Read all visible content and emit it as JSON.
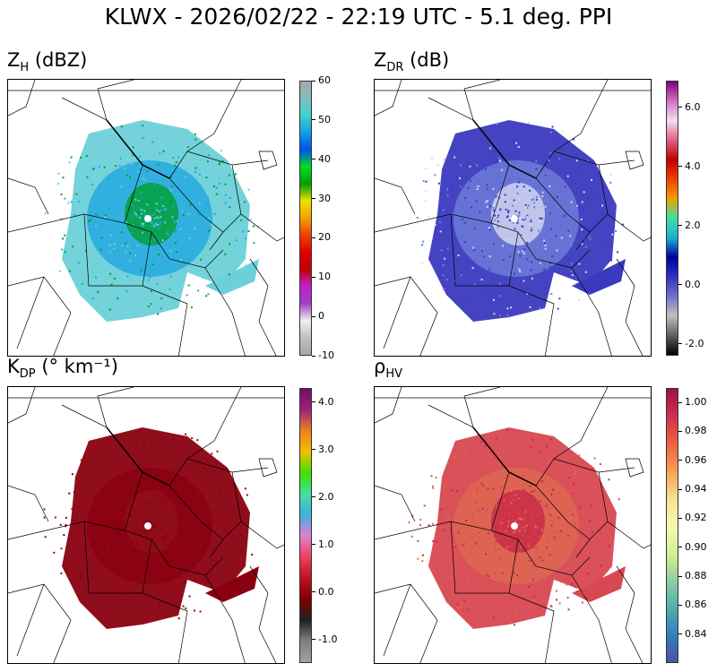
{
  "title": "KLWX - 2026/02/22 - 22:19 UTC - 5.1 deg. PPI",
  "panels": [
    {
      "id": "zh",
      "label_main": "Z",
      "label_sub": "H",
      "label_unit": " (dBZ)",
      "range": [
        -10,
        60
      ],
      "ticks": [
        "60",
        "50",
        "40",
        "30",
        "20",
        "10",
        "0",
        "-10"
      ],
      "tick_values": [
        60,
        50,
        40,
        30,
        20,
        10,
        0,
        -10
      ],
      "colormap": [
        "#a8a8a8",
        "#7fbfc0",
        "#40d0d0",
        "#10a0e0",
        "#0050f0",
        "#00e020",
        "#00a000",
        "#f0e000",
        "#f0a000",
        "#f04000",
        "#e00000",
        "#c00000",
        "#c020d0",
        "#a040c0",
        "#f0f0f0",
        "#c0c0c0",
        "#a8a8a8"
      ],
      "fill": [
        "#6cd0d8",
        "#20a8e0",
        "#00a030"
      ]
    },
    {
      "id": "zdr",
      "label_main": "Z",
      "label_sub": "DR",
      "label_unit": " (dB)",
      "range": [
        -2.4,
        6.9
      ],
      "ticks": [
        "6.0",
        "4.0",
        "2.0",
        "0.0",
        "-2.0"
      ],
      "tick_values": [
        6,
        4,
        2,
        0,
        -2
      ],
      "colormap": [
        "#800080",
        "#d070c0",
        "#f0e0f0",
        "#e06080",
        "#c00000",
        "#f04000",
        "#f0a000",
        "#40e0a0",
        "#20b0d0",
        "#0000a0",
        "#3030c0",
        "#7070d0",
        "#c0c0c0",
        "#606060",
        "#000000"
      ],
      "fill": [
        "#3a3ac0",
        "#7080d8",
        "#d8d8f0"
      ]
    },
    {
      "id": "kdp",
      "label_main": "K",
      "label_sub": "DP",
      "label_unit": " (° km⁻¹)",
      "range": [
        -1.5,
        4.3
      ],
      "ticks": [
        "4.0",
        "3.0",
        "2.0",
        "1.0",
        "0.0",
        "-1.0"
      ],
      "tick_values": [
        4,
        3,
        2,
        1,
        0,
        -1
      ],
      "colormap": [
        "#701060",
        "#a02080",
        "#f08020",
        "#f0c000",
        "#40e000",
        "#40e0a0",
        "#40b0e0",
        "#e080d0",
        "#f04060",
        "#c01020",
        "#800000",
        "#202020",
        "#808080",
        "#a0a0a0"
      ],
      "fill": [
        "#8a0010",
        "#8a0010",
        "#90101c"
      ]
    },
    {
      "id": "rhohv",
      "label_main": "ρ",
      "label_sub": "HV",
      "label_unit": "",
      "range": [
        0.82,
        1.01
      ],
      "ticks": [
        "1.00",
        "0.98",
        "0.96",
        "0.94",
        "0.92",
        "0.90",
        "0.88",
        "0.86",
        "0.84"
      ],
      "tick_values": [
        1.0,
        0.98,
        0.96,
        0.94,
        0.92,
        0.9,
        0.88,
        0.86,
        0.84
      ],
      "colormap": [
        "#a01040",
        "#d03050",
        "#f06040",
        "#f8a050",
        "#f8e090",
        "#f8f8b0",
        "#d8f090",
        "#90d0a0",
        "#50b0a8",
        "#3080c0",
        "#5050a0"
      ],
      "fill": [
        "#d84850",
        "#e06850",
        "#c82848"
      ]
    }
  ]
}
